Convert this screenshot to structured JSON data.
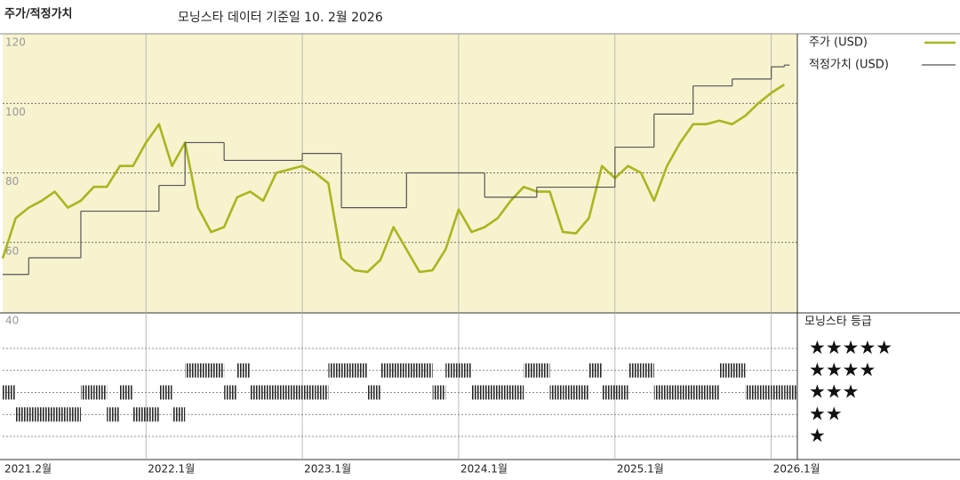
{
  "chart_data": {
    "type": "line",
    "title": "모닝스타 데이터 기준일 10. 2월 2026",
    "ylabel": "주가/적정가치",
    "x": [
      "2021-02",
      "2021-03",
      "2021-04",
      "2021-05",
      "2021-06",
      "2021-07",
      "2021-08",
      "2021-09",
      "2021-10",
      "2021-11",
      "2021-12",
      "2022-01",
      "2022-02",
      "2022-03",
      "2022-04",
      "2022-05",
      "2022-06",
      "2022-07",
      "2022-08",
      "2022-09",
      "2022-10",
      "2022-11",
      "2022-12",
      "2023-01",
      "2023-02",
      "2023-03",
      "2023-04",
      "2023-05",
      "2023-06",
      "2023-07",
      "2023-08",
      "2023-09",
      "2023-10",
      "2023-11",
      "2023-12",
      "2024-01",
      "2024-02",
      "2024-03",
      "2024-04",
      "2024-05",
      "2024-06",
      "2024-07",
      "2024-08",
      "2024-09",
      "2024-10",
      "2024-11",
      "2024-12",
      "2025-01",
      "2025-02",
      "2025-03",
      "2025-04",
      "2025-05",
      "2025-06",
      "2025-07",
      "2025-08",
      "2025-09",
      "2025-10",
      "2025-11",
      "2025-12",
      "2026-01",
      "2026-02"
    ],
    "xlim": [
      "2021-02",
      "2026-03"
    ],
    "xticks": [
      {
        "value": "2021-02",
        "label": "2021.2월"
      },
      {
        "value": "2022-01",
        "label": "2022.1월"
      },
      {
        "value": "2023-01",
        "label": "2023.1월"
      },
      {
        "value": "2024-01",
        "label": "2024.1월"
      },
      {
        "value": "2025-01",
        "label": "2025.1월"
      },
      {
        "value": "2026-01",
        "label": "2026.1월"
      }
    ],
    "ylim": [
      40,
      120
    ],
    "yticks": [
      40,
      60,
      80,
      100,
      120
    ],
    "grid": true,
    "background": "#f7f3cf",
    "series": [
      {
        "name": "주가 (USD)",
        "color": "#a9b521",
        "values": [
          55.4,
          67,
          70,
          72,
          74.6,
          70,
          72,
          76,
          76,
          82,
          82,
          88.7,
          94,
          82,
          88.7,
          70,
          63,
          64.4,
          73,
          74.6,
          72,
          80,
          81,
          82,
          80,
          77,
          55.4,
          52,
          51.5,
          55,
          64.4,
          58,
          51.5,
          52,
          58,
          69.5,
          63,
          64.4,
          67,
          72,
          76,
          74.6,
          74.6,
          63,
          62.6,
          67,
          82,
          78.5,
          82,
          80,
          72,
          82,
          88.7,
          94,
          94,
          95,
          94,
          96.4,
          100,
          103,
          105.4
        ]
      },
      {
        "name": "적정가치 (USD)",
        "color": "#555555",
        "step": true,
        "x": [
          "2021-02",
          "2021-04",
          "2021-08",
          "2022-02",
          "2022-04",
          "2022-07",
          "2023-01",
          "2023-04",
          "2023-09",
          "2024-03",
          "2024-07",
          "2025-01",
          "2025-04",
          "2025-07",
          "2025-10",
          "2026-01",
          "2026-02"
        ],
        "values": [
          50.8,
          55.6,
          69,
          76.4,
          88.7,
          83.6,
          85.6,
          70,
          80,
          73,
          75.9,
          87.4,
          96.9,
          105,
          107,
          110.5,
          111
        ]
      }
    ],
    "rating": {
      "name": "모닝스타 등급",
      "levels": [
        "★★★★★",
        "★★★★",
        "★★★",
        "★★",
        "★"
      ],
      "values": [
        3,
        2,
        2,
        2,
        2,
        2,
        3,
        3,
        2,
        3,
        2,
        2,
        3,
        2,
        4,
        4,
        4,
        3,
        4,
        3,
        3,
        3,
        3,
        3,
        3,
        4,
        4,
        4,
        3,
        4,
        4,
        4,
        4,
        3,
        4,
        4,
        3,
        3,
        3,
        3,
        4,
        4,
        3,
        3,
        3,
        4,
        3,
        3,
        4,
        4,
        3,
        3,
        3,
        3,
        3,
        4,
        4,
        3,
        3,
        3,
        3
      ]
    }
  }
}
